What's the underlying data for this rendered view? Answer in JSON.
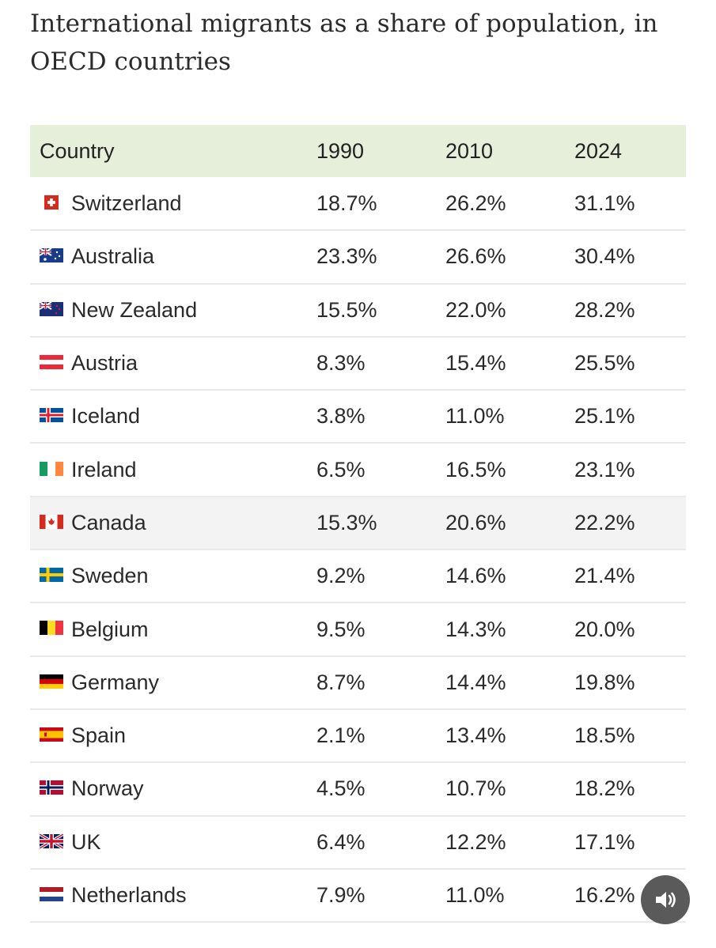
{
  "title": "International migrants as a share of population, in OECD countries",
  "columns": [
    "Country",
    "1990",
    "2010",
    "2024"
  ],
  "rows": [
    {
      "flag": "switzerland-flag-icon",
      "country": "Switzerland",
      "y1990": "18.7%",
      "y2010": "26.2%",
      "y2024": "31.1%"
    },
    {
      "flag": "australia-flag-icon",
      "country": "Australia",
      "y1990": "23.3%",
      "y2010": "26.6%",
      "y2024": "30.4%"
    },
    {
      "flag": "new-zealand-flag-icon",
      "country": "New Zealand",
      "y1990": "15.5%",
      "y2010": "22.0%",
      "y2024": "28.2%"
    },
    {
      "flag": "austria-flag-icon",
      "country": "Austria",
      "y1990": "8.3%",
      "y2010": "15.4%",
      "y2024": "25.5%"
    },
    {
      "flag": "iceland-flag-icon",
      "country": "Iceland",
      "y1990": "3.8%",
      "y2010": "11.0%",
      "y2024": "25.1%"
    },
    {
      "flag": "ireland-flag-icon",
      "country": "Ireland",
      "y1990": "6.5%",
      "y2010": "16.5%",
      "y2024": "23.1%"
    },
    {
      "flag": "canada-flag-icon",
      "country": "Canada",
      "y1990": "15.3%",
      "y2010": "20.6%",
      "y2024": "22.2%"
    },
    {
      "flag": "sweden-flag-icon",
      "country": "Sweden",
      "y1990": "9.2%",
      "y2010": "14.6%",
      "y2024": "21.4%"
    },
    {
      "flag": "belgium-flag-icon",
      "country": "Belgium",
      "y1990": "9.5%",
      "y2010": "14.3%",
      "y2024": "20.0%"
    },
    {
      "flag": "germany-flag-icon",
      "country": "Germany",
      "y1990": "8.7%",
      "y2010": "14.4%",
      "y2024": "19.8%"
    },
    {
      "flag": "spain-flag-icon",
      "country": "Spain",
      "y1990": "2.1%",
      "y2010": "13.4%",
      "y2024": "18.5%"
    },
    {
      "flag": "norway-flag-icon",
      "country": "Norway",
      "y1990": "4.5%",
      "y2010": "10.7%",
      "y2024": "18.2%"
    },
    {
      "flag": "uk-flag-icon",
      "country": "UK",
      "y1990": "6.4%",
      "y2010": "12.2%",
      "y2024": "17.1%"
    },
    {
      "flag": "netherlands-flag-icon",
      "country": "Netherlands",
      "y1990": "7.9%",
      "y2010": "11.0%",
      "y2024": "16.2%"
    }
  ],
  "colors": {
    "header_bg": "#e6efd9",
    "row_alt_bg": "#f3f3f3",
    "audio_button_bg": "#5a5a5a"
  },
  "audio_button_icon": "speaker-icon"
}
